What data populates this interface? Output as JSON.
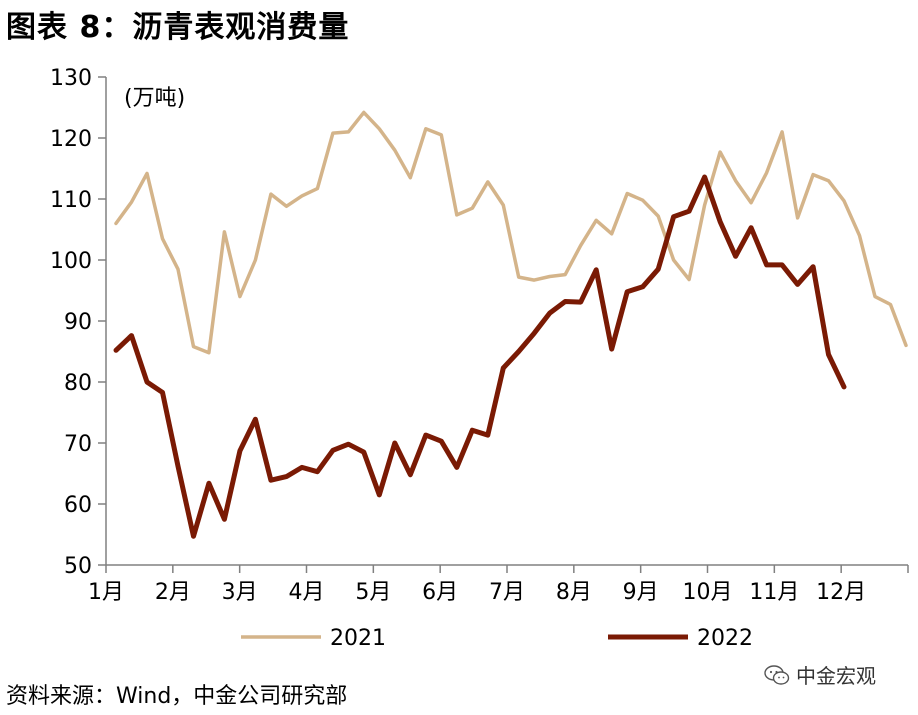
{
  "title": "图表 8：沥青表观消费量",
  "source": "资料来源：Wind，中金公司研究部",
  "watermark": "中金宏观",
  "chart_data": {
    "type": "line",
    "unit": "(万吨)",
    "ylim": [
      50,
      130
    ],
    "yticks": [
      50,
      60,
      70,
      80,
      90,
      100,
      110,
      120,
      130
    ],
    "xticks": [
      "1月",
      "2月",
      "3月",
      "4月",
      "5月",
      "6月",
      "7月",
      "8月",
      "9月",
      "10月",
      "11月",
      "12月"
    ],
    "points_per_year": 52,
    "colors": {
      "2021": "#d4b48a",
      "2022": "#7a1a04"
    },
    "series": [
      {
        "name": "2021",
        "values": [
          106,
          109.5,
          114.2,
          103.5,
          98.5,
          85.8,
          84.8,
          104.6,
          94,
          100,
          110.8,
          108.8,
          110.5,
          111.7,
          120.8,
          121,
          124.2,
          121.5,
          118,
          113.5,
          121.5,
          120.5,
          107.4,
          108.5,
          112.8,
          109,
          97.2,
          96.7,
          97.3,
          97.6,
          102.4,
          106.5,
          104.3,
          110.9,
          109.8,
          107.2,
          100,
          96.8,
          109,
          117.7,
          113,
          109.4,
          114.3,
          121,
          106.9,
          114,
          113,
          109.7,
          104,
          94,
          92.7,
          86
        ]
      },
      {
        "name": "2022",
        "values": [
          85.2,
          87.6,
          80,
          78.3,
          66.2,
          54.7,
          63.4,
          57.5,
          68.7,
          73.9,
          63.9,
          64.5,
          66,
          65.3,
          68.8,
          69.8,
          68.5,
          61.5,
          70,
          64.8,
          71.3,
          70.3,
          66,
          72.1,
          71.3,
          82.3,
          85,
          88,
          91.3,
          93.2,
          93.1,
          98.4,
          85.4,
          94.8,
          95.6,
          98.5,
          107.1,
          108,
          113.6,
          106.3,
          100.6,
          105.3,
          99.2,
          99.2,
          96,
          98.9,
          84.5,
          79.2
        ]
      }
    ],
    "legend": [
      "2021",
      "2022"
    ],
    "legend_position": "bottom"
  }
}
